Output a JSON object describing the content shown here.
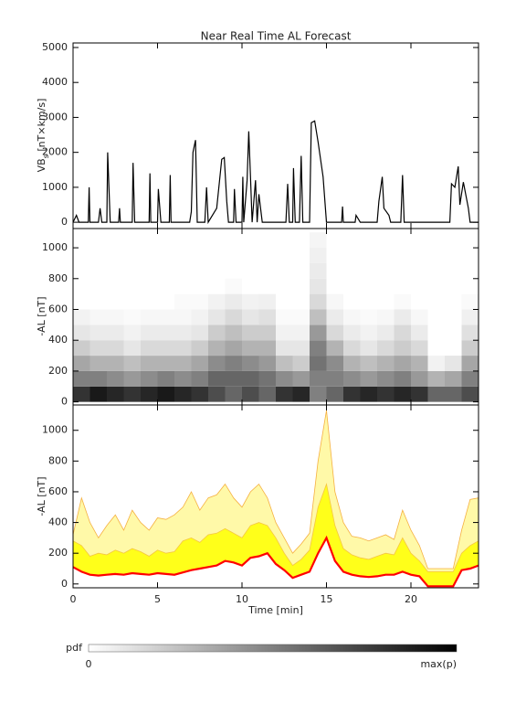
{
  "chart_data": [
    {
      "type": "line",
      "title": "Near Real Time AL Forecast",
      "ylabel": {
        "main": "VB",
        "sub": "s",
        "unit": " [nT×km/s]"
      },
      "color": "#000000",
      "xlim": [
        0,
        24
      ],
      "xticks": [
        0,
        5,
        10,
        15,
        20
      ],
      "ylim": [
        -180,
        5130
      ],
      "yticks": [
        0,
        1000,
        2000,
        3000,
        4000,
        5000
      ],
      "x": [
        0,
        0.2,
        0.35,
        0.9,
        0.95,
        1.0,
        1.5,
        1.6,
        1.7,
        2.0,
        2.05,
        2.2,
        2.7,
        2.75,
        2.8,
        3.5,
        3.55,
        3.65,
        4.5,
        4.55,
        4.6,
        5.0,
        5.05,
        5.2,
        5.7,
        5.75,
        5.8,
        6.9,
        7.0,
        7.1,
        7.25,
        7.35,
        7.8,
        7.9,
        8.0,
        8.5,
        8.8,
        8.95,
        9.1,
        9.2,
        9.5,
        9.55,
        9.65,
        10.0,
        10.05,
        10.1,
        10.3,
        10.4,
        10.5,
        10.6,
        10.8,
        10.9,
        11.0,
        11.2,
        12.6,
        12.7,
        12.8,
        13.0,
        13.05,
        13.15,
        13.4,
        13.5,
        13.6,
        14.0,
        14.1,
        14.3,
        14.5,
        14.8,
        15.0,
        15.9,
        15.95,
        16.0,
        16.7,
        16.75,
        17.0,
        18.0,
        18.1,
        18.3,
        18.4,
        18.7,
        18.8,
        19.4,
        19.5,
        19.6,
        22.3,
        22.4,
        22.6,
        22.8,
        22.9,
        23.1,
        23.4,
        23.5,
        24
      ],
      "values": [
        0,
        200,
        0,
        0,
        1000,
        0,
        0,
        400,
        0,
        0,
        2000,
        0,
        0,
        400,
        0,
        0,
        1700,
        0,
        0,
        1400,
        0,
        0,
        950,
        0,
        0,
        1350,
        0,
        0,
        300,
        2000,
        2350,
        0,
        0,
        1000,
        0,
        400,
        1800,
        1850,
        600,
        0,
        0,
        950,
        0,
        0,
        1300,
        0,
        1200,
        2600,
        1300,
        0,
        1200,
        0,
        800,
        0,
        0,
        1100,
        0,
        0,
        1550,
        0,
        0,
        1900,
        0,
        0,
        2850,
        2900,
        2300,
        1300,
        0,
        0,
        450,
        0,
        0,
        200,
        0,
        0,
        600,
        1300,
        400,
        200,
        0,
        0,
        1350,
        0,
        0,
        1100,
        1000,
        1600,
        500,
        1150,
        400,
        0,
        0
      ]
    },
    {
      "type": "heatmap",
      "ylabel": "-AL [nT]",
      "xlim": [
        0,
        24
      ],
      "xticks": [
        0,
        5,
        10,
        15,
        20
      ],
      "ylim": [
        -20,
        1125
      ],
      "yticks": [
        0,
        200,
        400,
        600,
        800,
        1000
      ],
      "xbins": [
        0,
        1,
        2,
        3,
        4,
        5,
        6,
        7,
        8,
        9,
        10,
        11,
        12,
        13,
        14,
        15,
        16,
        17,
        18,
        19,
        20,
        21,
        22,
        23,
        24
      ],
      "ybins": [
        0,
        100,
        200,
        300,
        400,
        500,
        600,
        700,
        800,
        900,
        1000,
        1100
      ],
      "z": [
        [
          0.8,
          0.9,
          0.85,
          0.8,
          0.85,
          0.9,
          0.85,
          0.8,
          0.7,
          0.6,
          0.7,
          0.6,
          0.8,
          0.85,
          0.5,
          0.6,
          0.8,
          0.85,
          0.8,
          0.85,
          0.8,
          0.6,
          0.6,
          0.7
        ],
        [
          0.5,
          0.5,
          0.45,
          0.4,
          0.45,
          0.5,
          0.45,
          0.5,
          0.6,
          0.6,
          0.6,
          0.55,
          0.45,
          0.4,
          0.5,
          0.5,
          0.45,
          0.4,
          0.45,
          0.5,
          0.4,
          0.3,
          0.35,
          0.5
        ],
        [
          0.35,
          0.3,
          0.3,
          0.25,
          0.3,
          0.3,
          0.3,
          0.35,
          0.45,
          0.5,
          0.45,
          0.4,
          0.25,
          0.2,
          0.55,
          0.45,
          0.3,
          0.25,
          0.3,
          0.35,
          0.3,
          0.05,
          0.1,
          0.35
        ],
        [
          0.2,
          0.15,
          0.15,
          0.1,
          0.15,
          0.15,
          0.15,
          0.2,
          0.3,
          0.35,
          0.3,
          0.3,
          0.1,
          0.1,
          0.5,
          0.3,
          0.15,
          0.1,
          0.15,
          0.2,
          0.15,
          0,
          0,
          0.2
        ],
        [
          0.1,
          0.08,
          0.08,
          0.05,
          0.08,
          0.08,
          0.08,
          0.1,
          0.2,
          0.25,
          0.2,
          0.2,
          0.05,
          0.05,
          0.4,
          0.15,
          0.08,
          0.05,
          0.08,
          0.15,
          0.08,
          0,
          0,
          0.12
        ],
        [
          0.05,
          0.03,
          0.03,
          0.02,
          0.03,
          0.03,
          0.03,
          0.05,
          0.1,
          0.15,
          0.1,
          0.12,
          0.02,
          0.02,
          0.25,
          0.08,
          0.03,
          0.02,
          0.03,
          0.08,
          0.03,
          0,
          0,
          0.06
        ],
        [
          0,
          0,
          0,
          0,
          0,
          0,
          0.02,
          0.02,
          0.05,
          0.08,
          0.05,
          0.06,
          0,
          0,
          0.15,
          0.03,
          0,
          0,
          0,
          0.02,
          0,
          0,
          0,
          0.02
        ],
        [
          0,
          0,
          0,
          0,
          0,
          0,
          0,
          0,
          0,
          0.02,
          0,
          0,
          0,
          0,
          0.1,
          0,
          0,
          0,
          0,
          0,
          0,
          0,
          0,
          0
        ],
        [
          0,
          0,
          0,
          0,
          0,
          0,
          0,
          0,
          0,
          0,
          0,
          0,
          0,
          0,
          0.08,
          0,
          0,
          0,
          0,
          0,
          0,
          0,
          0,
          0
        ],
        [
          0,
          0,
          0,
          0,
          0,
          0,
          0,
          0,
          0,
          0,
          0,
          0,
          0,
          0,
          0.06,
          0,
          0,
          0,
          0,
          0,
          0,
          0,
          0,
          0
        ],
        [
          0,
          0,
          0,
          0,
          0,
          0,
          0,
          0,
          0,
          0,
          0,
          0,
          0,
          0,
          0.04,
          0,
          0,
          0,
          0,
          0,
          0,
          0,
          0,
          0
        ]
      ],
      "colorbar": {
        "label": "pdf",
        "min_label": "0",
        "max_label": "max(p)"
      }
    },
    {
      "type": "band",
      "ylabel": "-AL [nT]",
      "xlabel": "Time [min]",
      "xlim": [
        0,
        24
      ],
      "xticks": [
        0,
        5,
        10,
        15,
        20
      ],
      "ylim": [
        -25,
        1165
      ],
      "yticks": [
        0,
        200,
        400,
        600,
        800,
        1000
      ],
      "x": [
        0,
        0.5,
        1,
        1.5,
        2,
        2.5,
        3,
        3.5,
        4,
        4.5,
        5,
        5.5,
        6,
        6.5,
        7,
        7.5,
        8,
        8.5,
        9,
        9.5,
        10,
        10.5,
        11,
        11.5,
        12,
        12.5,
        13,
        13.5,
        14,
        14.5,
        15,
        15.5,
        16,
        16.5,
        17,
        17.5,
        18,
        18.5,
        19,
        19.5,
        20,
        20.5,
        21,
        21.5,
        22,
        22.5,
        23,
        23.5,
        24
      ],
      "series": [
        {
          "color": "#fff9a8",
          "line": "#f5b041",
          "values": [
            320,
            560,
            400,
            300,
            380,
            450,
            350,
            480,
            400,
            350,
            430,
            420,
            450,
            500,
            600,
            480,
            560,
            580,
            650,
            560,
            500,
            600,
            650,
            560,
            400,
            300,
            200,
            260,
            330,
            800,
            1130,
            600,
            400,
            310,
            300,
            280,
            300,
            320,
            290,
            480,
            350,
            250,
            100,
            100,
            100,
            100,
            350,
            550,
            560
          ]
        },
        {
          "color": "#ffff1a",
          "line": "#f5c542",
          "values": [
            280,
            250,
            180,
            200,
            190,
            220,
            200,
            230,
            210,
            180,
            220,
            200,
            210,
            280,
            300,
            270,
            320,
            330,
            360,
            330,
            300,
            380,
            400,
            380,
            300,
            200,
            120,
            160,
            220,
            500,
            650,
            380,
            230,
            190,
            170,
            160,
            180,
            200,
            190,
            300,
            200,
            150,
            80,
            80,
            80,
            80,
            200,
            250,
            280
          ]
        },
        {
          "color": "#ffffff",
          "line": "#ff0000",
          "values": [
            110,
            80,
            60,
            55,
            60,
            65,
            60,
            70,
            65,
            60,
            70,
            65,
            60,
            75,
            90,
            100,
            110,
            120,
            150,
            140,
            120,
            170,
            180,
            200,
            130,
            90,
            40,
            60,
            80,
            200,
            300,
            150,
            80,
            60,
            50,
            45,
            50,
            60,
            60,
            80,
            60,
            50,
            -15,
            -15,
            -15,
            -15,
            90,
            100,
            120
          ]
        }
      ]
    }
  ]
}
